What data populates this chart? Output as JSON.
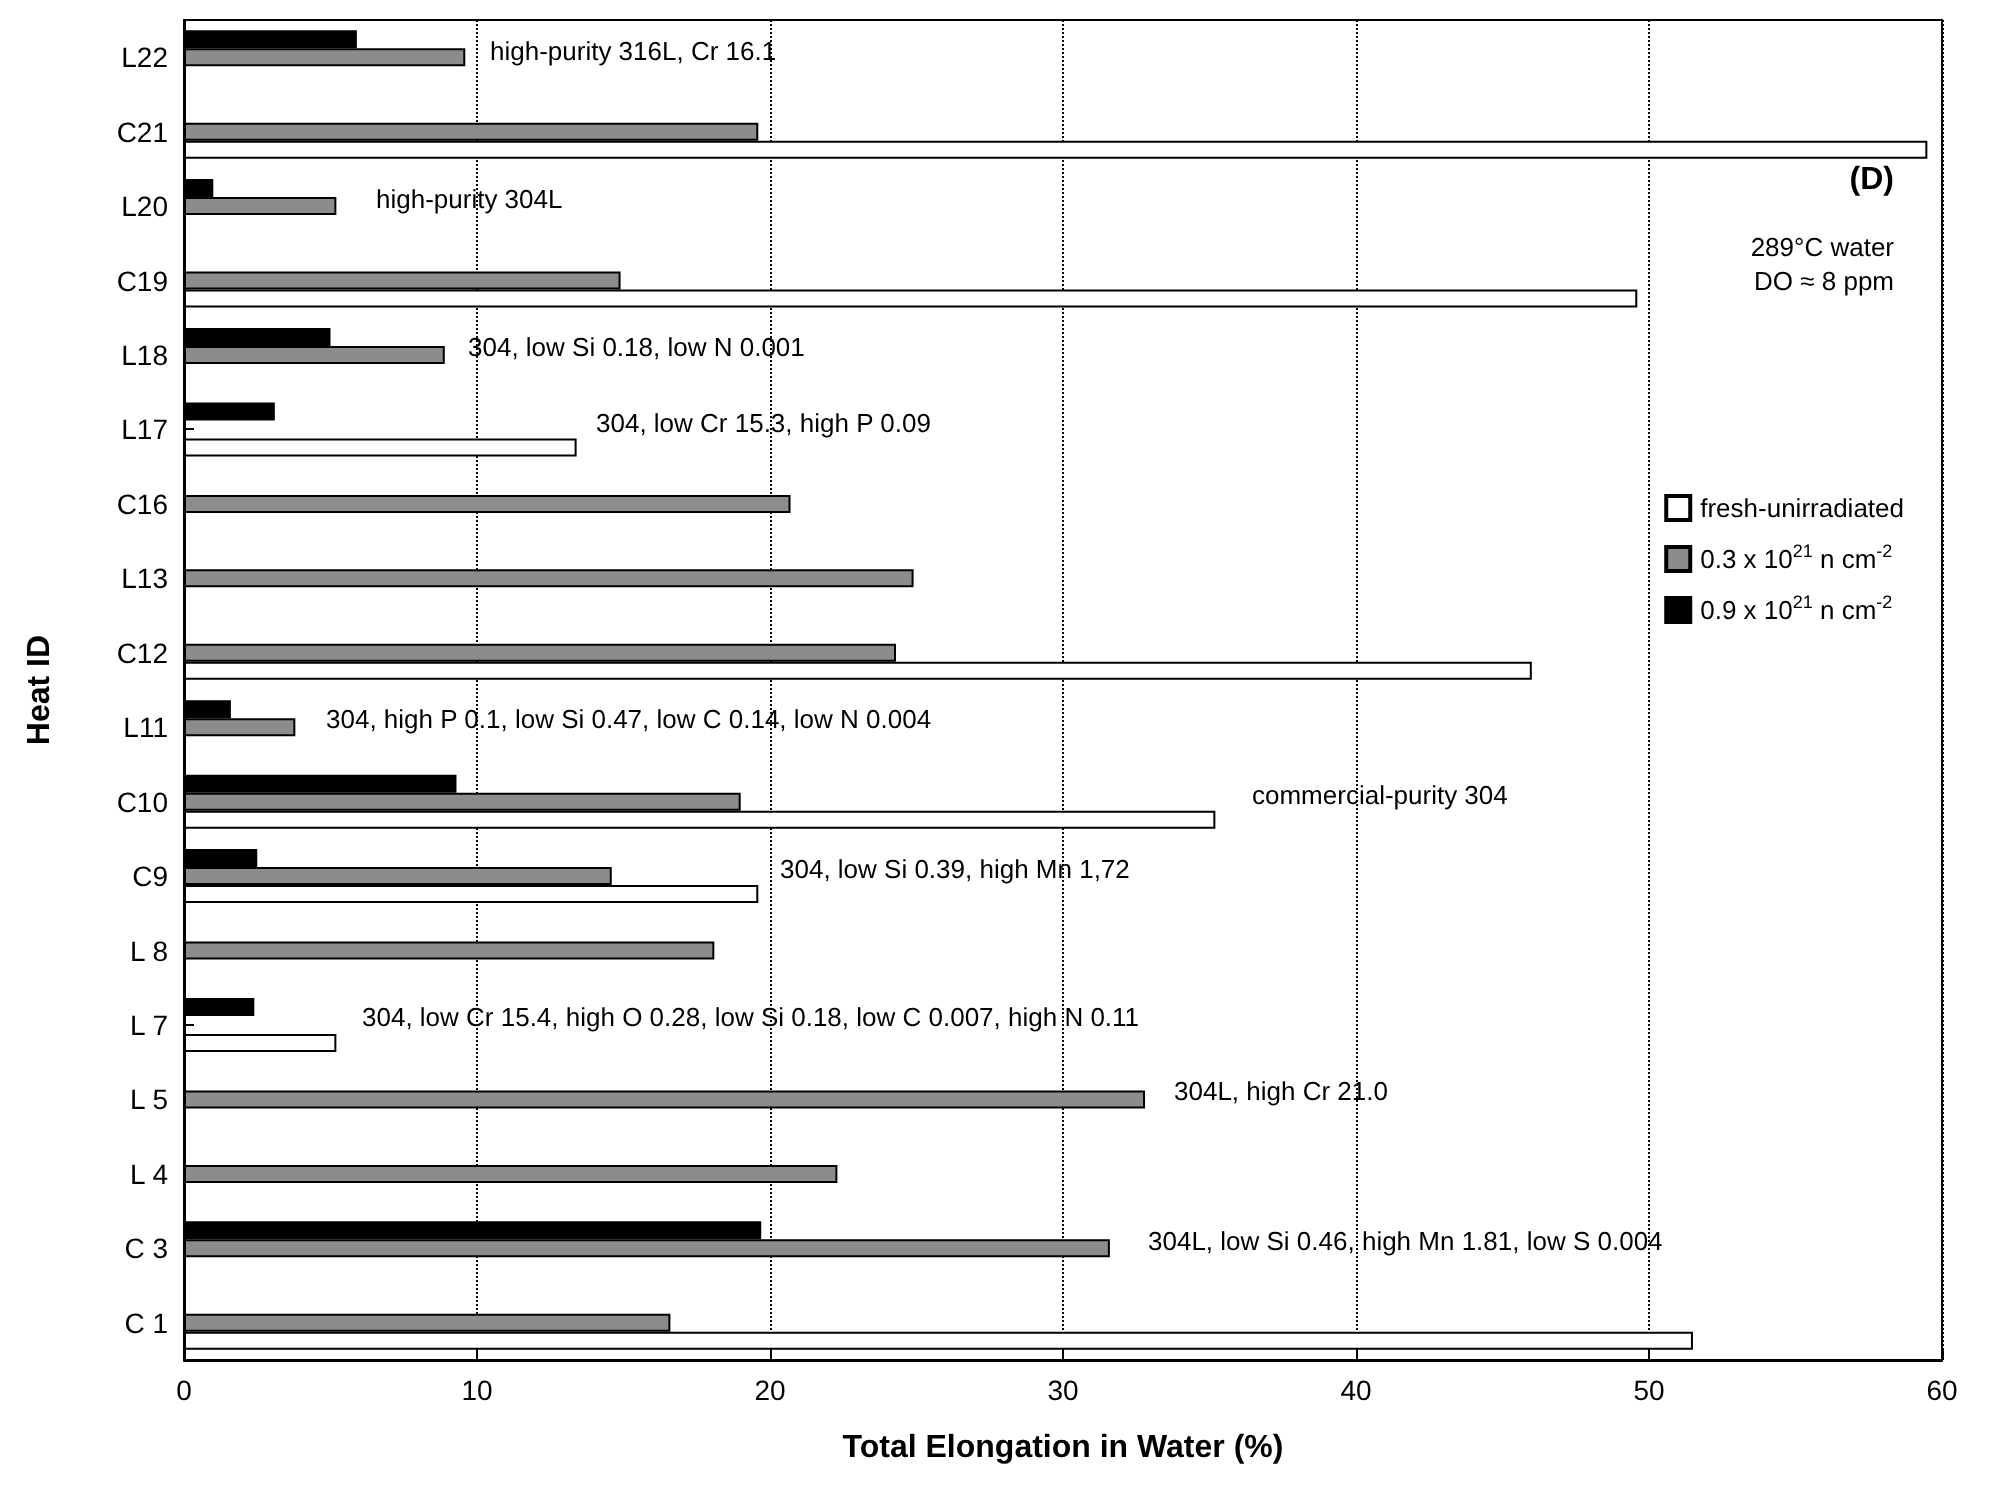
{
  "chart_data": {
    "type": "bar",
    "orientation": "horizontal",
    "xlabel": "Total Elongation in Water (%)",
    "ylabel": "Heat ID",
    "categories": [
      "L22",
      "C21",
      "L20",
      "C19",
      "L18",
      "L17",
      "C16",
      "L13",
      "C12",
      "L11",
      "C10",
      "C9",
      "L 8",
      "L 7",
      "L 5",
      "L 4",
      "C 3",
      "C 1"
    ],
    "series": [
      {
        "name": "fresh-unirradiated",
        "color": "#ffffff",
        "values": [
          null,
          59.5,
          null,
          49.6,
          null,
          13.4,
          null,
          null,
          46.0,
          null,
          35.2,
          19.6,
          null,
          5.2,
          null,
          null,
          null,
          51.5
        ]
      },
      {
        "name": "0.3 x 10$^{21}$ n cm$^{-2}$",
        "color": "#8c8c8c",
        "values": [
          9.6,
          19.6,
          5.2,
          14.9,
          8.9,
          null,
          20.7,
          24.9,
          24.3,
          3.8,
          19.0,
          14.6,
          18.1,
          null,
          32.8,
          22.3,
          31.6,
          16.6
        ]
      },
      {
        "name": "0.9 x 10$^{21}$ n cm$^{-2}$",
        "color": "#000000",
        "values": [
          5.9,
          null,
          1.0,
          null,
          5.0,
          3.1,
          null,
          null,
          null,
          1.6,
          9.3,
          2.5,
          null,
          2.4,
          null,
          null,
          19.7,
          null
        ]
      }
    ],
    "xlim": [
      0,
      60
    ],
    "xticks": [
      0,
      10,
      20,
      30,
      40,
      50,
      60
    ],
    "grid": "x",
    "legend": "right",
    "annotations": [
      "high-purity 316L, Cr 16.1",
      "high-purity 304L",
      "304, low Si 0.18, low N 0.001",
      "304, low Cr 15.3, high P 0.09",
      "304, high P 0.1, low Si 0.47, low C 0.14, low N 0.004",
      "commercial-purity 304",
      "304, low Si 0.39, high Mn 1,72",
      "304, low Cr 15.4, high O 0.28, low Si 0.18, low C 0.007, high N 0.11",
      "304L, high Cr 21.0",
      "304L, low Si 0.46, high Mn 1.81, low S 0.004",
      "(D)",
      "289°C water",
      "DO ≈ 8 ppm"
    ]
  }
}
